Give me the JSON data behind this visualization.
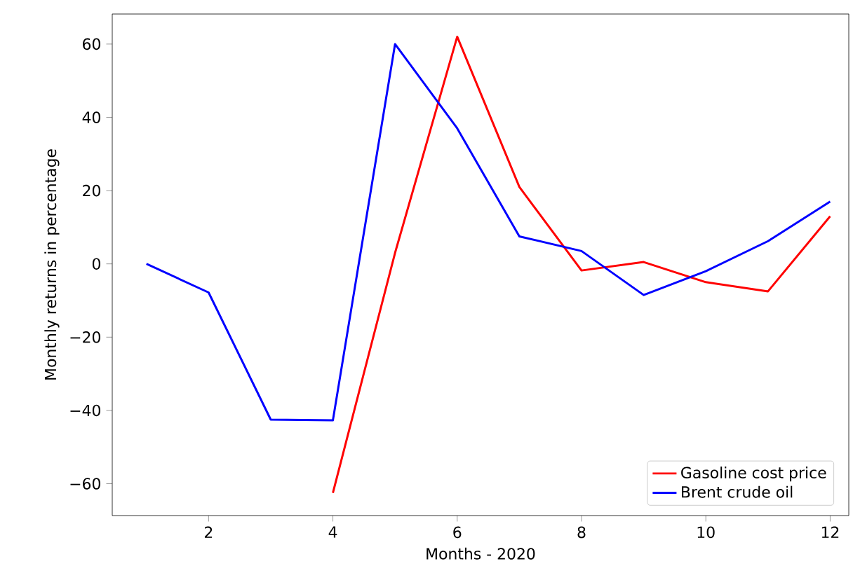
{
  "chart_data": {
    "type": "line",
    "xlabel": "Months - 2020",
    "ylabel": "Monthly returns in percentage",
    "xlim": [
      0.45,
      12.3
    ],
    "ylim": [
      -68.7,
      68.2
    ],
    "xticks": [
      2,
      4,
      6,
      8,
      10,
      12
    ],
    "yticks": [
      {
        "value": -60,
        "label": "−60"
      },
      {
        "value": -40,
        "label": "−40"
      },
      {
        "value": -20,
        "label": "−20"
      },
      0,
      20,
      40,
      60
    ],
    "legend": "bottom right",
    "grid": false,
    "series": [
      {
        "name": "Gasoline cost price",
        "color": "#ff0000",
        "x": [
          4,
          5,
          6,
          7,
          8,
          9,
          10,
          11,
          12
        ],
        "values": [
          -62.5,
          3,
          62,
          21,
          -1.8,
          0.5,
          -5,
          -7.5,
          13
        ]
      },
      {
        "name": "Brent crude oil",
        "color": "#0000ff",
        "x": [
          1,
          2,
          3,
          4,
          5,
          6,
          7,
          8,
          9,
          10,
          11,
          12
        ],
        "values": [
          0,
          -7.8,
          -42.5,
          -42.7,
          60,
          37,
          7.5,
          3.5,
          -8.5,
          -2,
          6.2,
          17
        ]
      }
    ]
  }
}
